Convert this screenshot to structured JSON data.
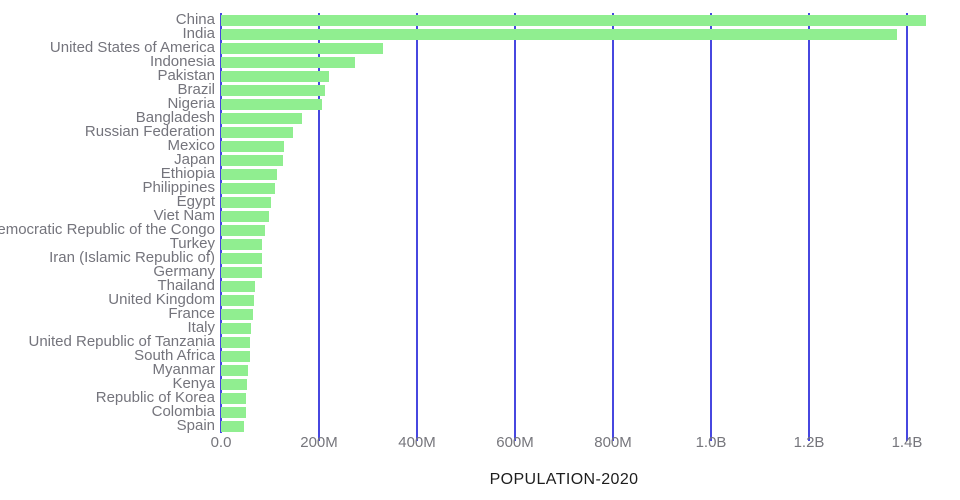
{
  "chart_data": {
    "type": "bar",
    "orientation": "horizontal",
    "title": "POPULATION-2020",
    "xlabel": "POPULATION-2020",
    "ylabel": "",
    "grid": "vertical-only",
    "legend": "none",
    "xlim_millions": [
      0,
      1508
    ],
    "x_ticks": [
      {
        "label": "0.0",
        "value_millions": 0
      },
      {
        "label": "200M",
        "value_millions": 200
      },
      {
        "label": "400M",
        "value_millions": 400
      },
      {
        "label": "600M",
        "value_millions": 600
      },
      {
        "label": "800M",
        "value_millions": 800
      },
      {
        "label": "1.0B",
        "value_millions": 1000
      },
      {
        "label": "1.2B",
        "value_millions": 1200
      },
      {
        "label": "1.4B",
        "value_millions": 1400
      }
    ],
    "categories": [
      "China",
      "India",
      "United States of America",
      "Indonesia",
      "Pakistan",
      "Brazil",
      "Nigeria",
      "Bangladesh",
      "Russian Federation",
      "Mexico",
      "Japan",
      "Ethiopia",
      "Philippines",
      "Egypt",
      "Viet Nam",
      "Democratic Republic of the Congo",
      "Turkey",
      "Iran (Islamic Republic of)",
      "Germany",
      "Thailand",
      "United Kingdom",
      "France",
      "Italy",
      "United Republic of Tanzania",
      "South Africa",
      "Myanmar",
      "Kenya",
      "Republic of Korea",
      "Colombia",
      "Spain"
    ],
    "values_millions": [
      1439.3,
      1380.0,
      331.0,
      273.5,
      220.9,
      212.6,
      206.1,
      164.7,
      145.9,
      128.9,
      126.5,
      115.0,
      109.6,
      102.3,
      97.3,
      89.6,
      84.3,
      84.0,
      83.8,
      69.8,
      67.9,
      65.3,
      60.5,
      59.7,
      59.3,
      54.4,
      53.8,
      51.3,
      50.9,
      46.8
    ],
    "colors": {
      "bar": "#90EE90",
      "gridline": "#4747E0",
      "country_label": "#74747C",
      "tick_label": "#76767C",
      "title": "#1D1D1D",
      "background": "#FFFFFF"
    }
  }
}
